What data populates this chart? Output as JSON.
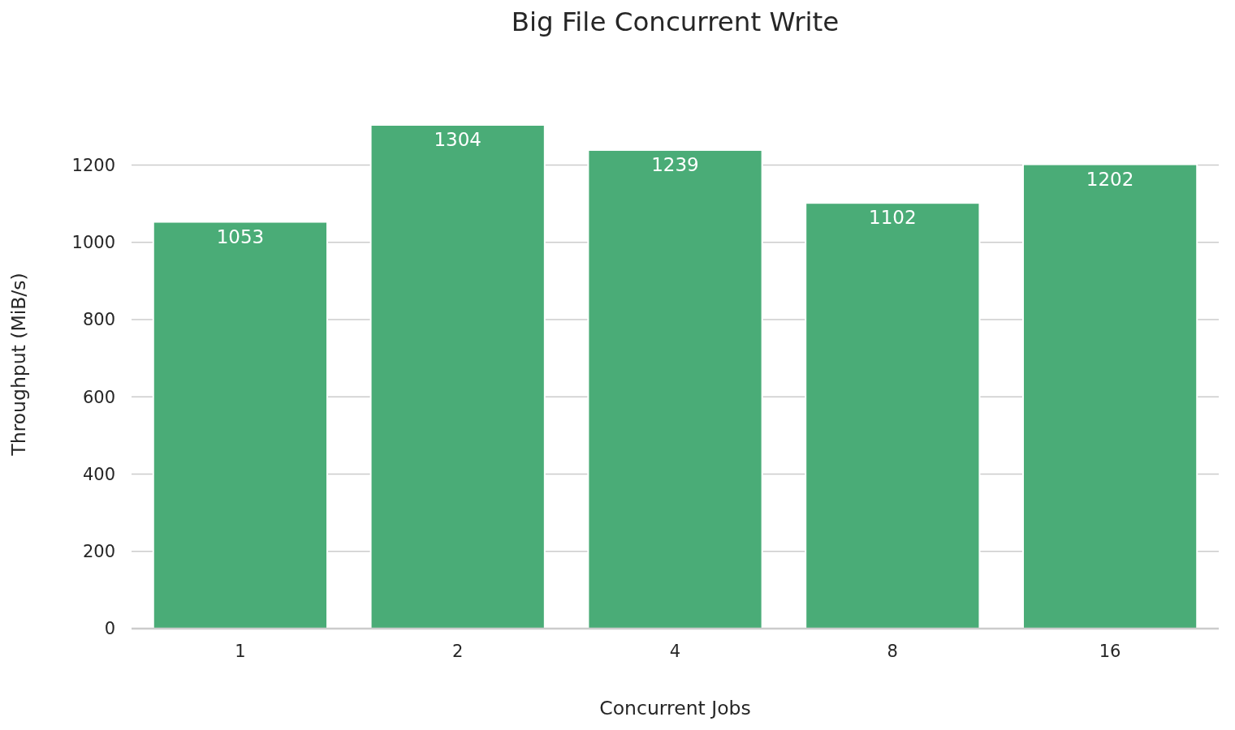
{
  "chart_data": {
    "type": "bar",
    "title": "Big File Concurrent Write",
    "xlabel": "Concurrent Jobs",
    "ylabel": "Throughput (MiB/s)",
    "categories": [
      "1",
      "2",
      "4",
      "8",
      "16"
    ],
    "values": [
      1053,
      1304,
      1239,
      1102,
      1202
    ],
    "color": "#4aac77",
    "ylim": [
      0,
      1304
    ],
    "yticks": [
      0,
      200,
      400,
      600,
      800,
      1000,
      1200
    ],
    "grid": "y",
    "data_labels": true
  }
}
